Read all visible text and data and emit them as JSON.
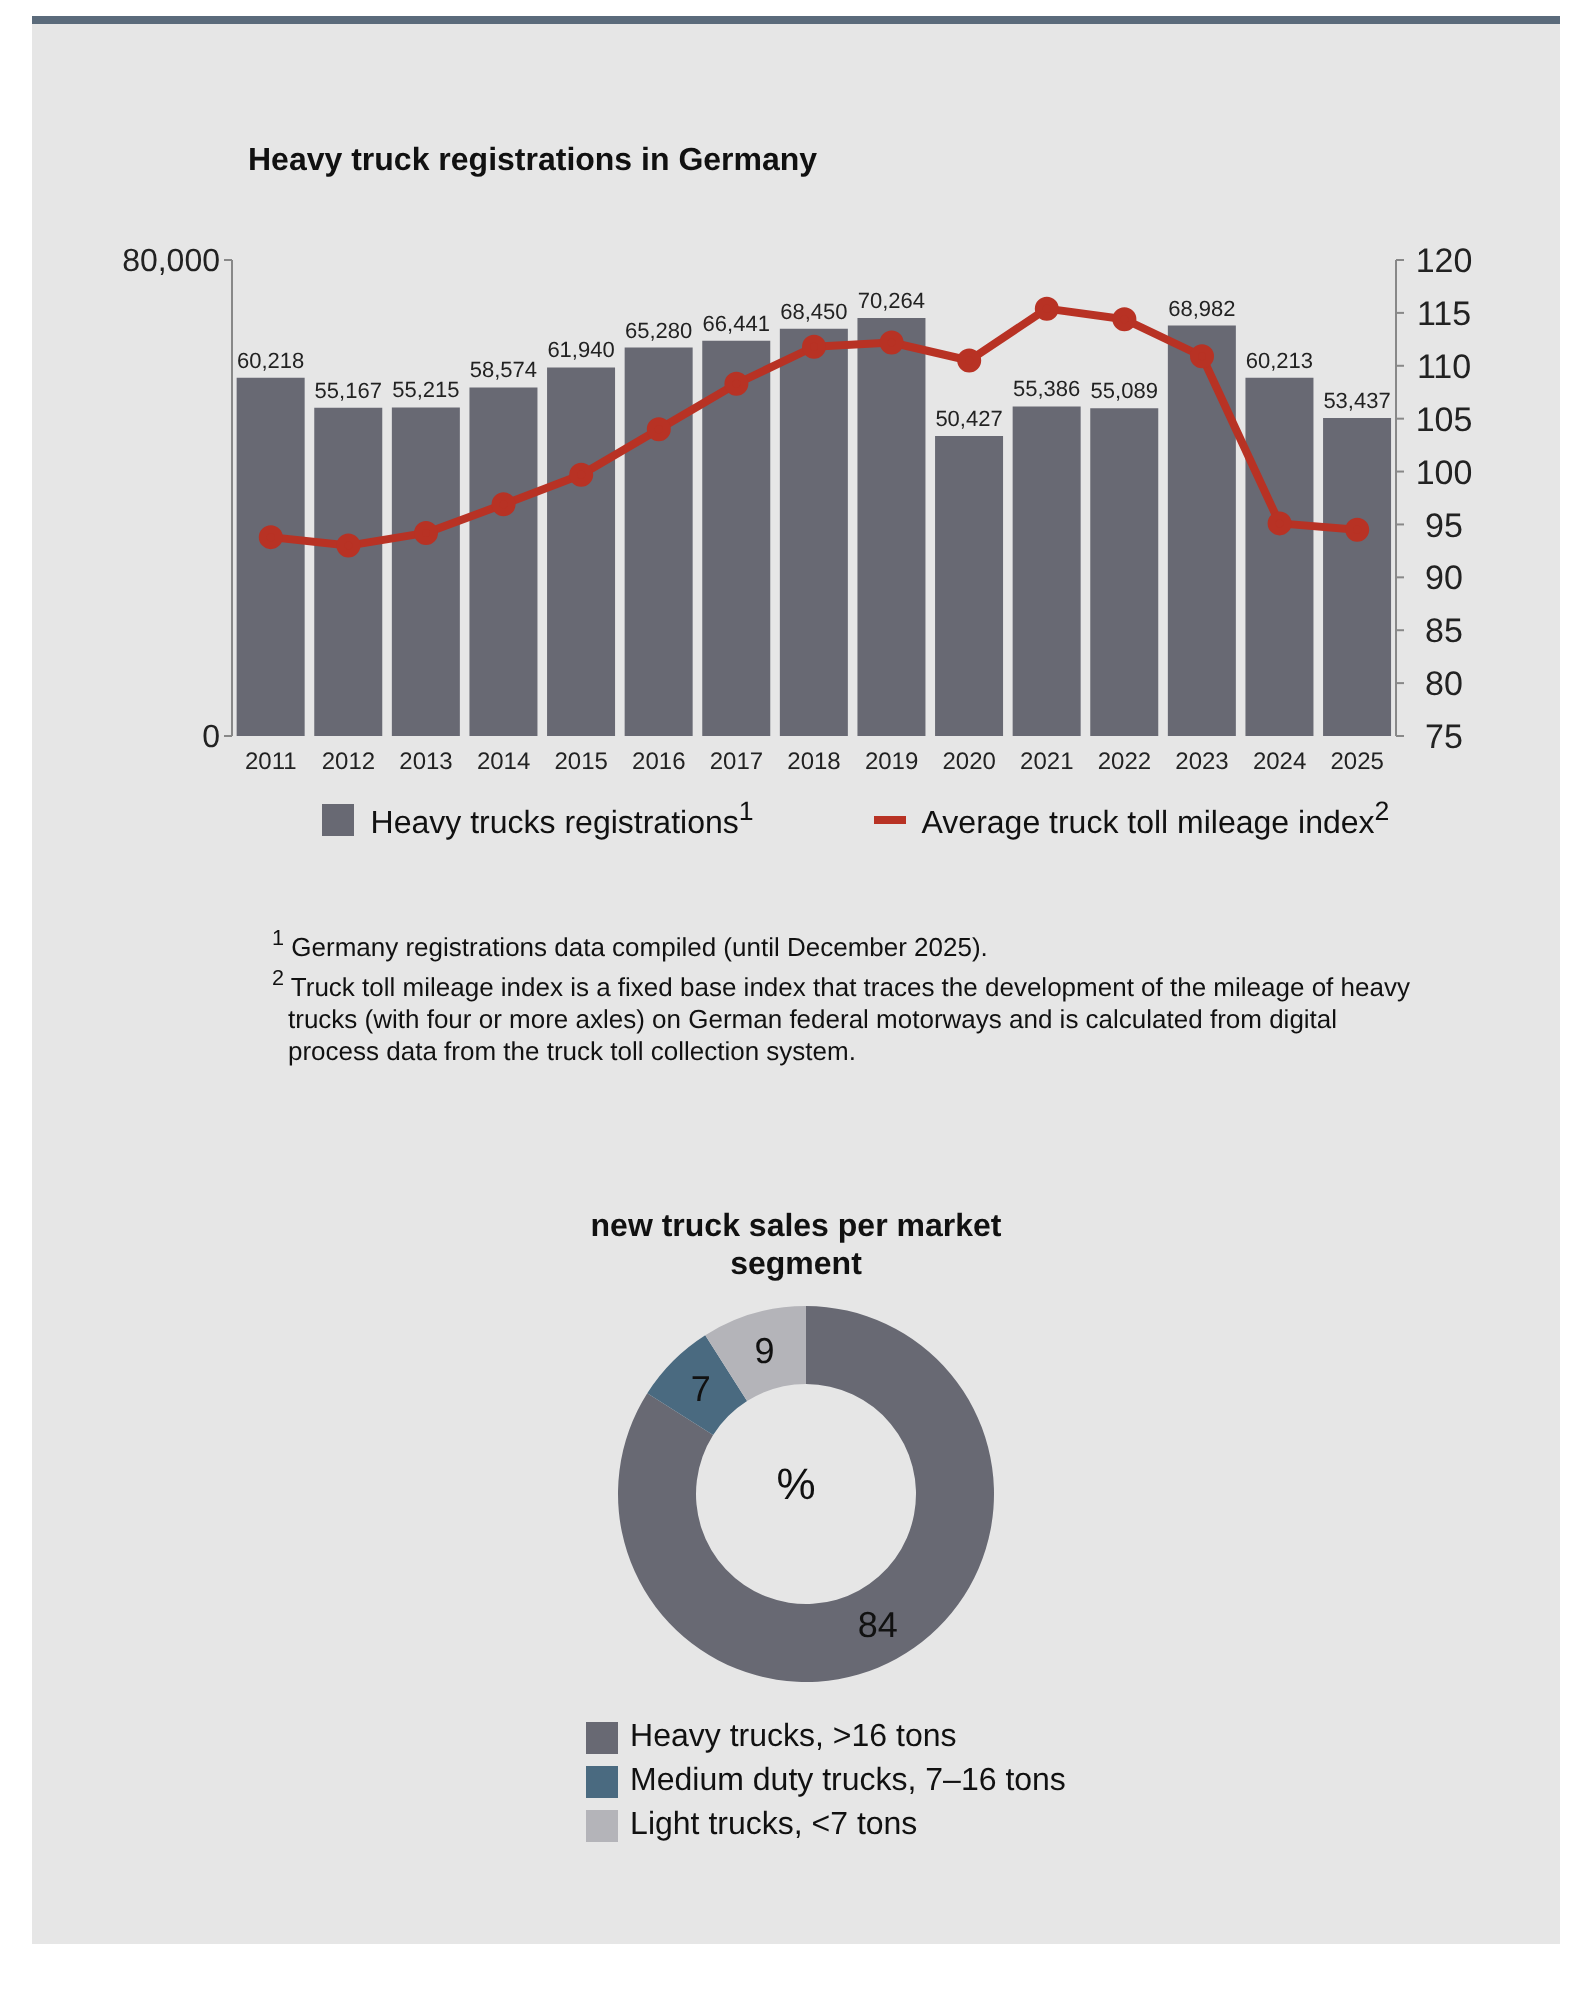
{
  "chart_data": [
    {
      "type": "bar",
      "title": "Heavy truck registrations in Germany",
      "categories": [
        "2011",
        "2012",
        "2013",
        "2014",
        "2015",
        "2016",
        "2017",
        "2018",
        "2019",
        "2020",
        "2021",
        "2022",
        "2023",
        "2024",
        "2025"
      ],
      "series": [
        {
          "name": "Heavy trucks registrations$^{1}$",
          "type": "bar",
          "color": "#686973",
          "values": [
            60218,
            55167,
            55215,
            58574,
            61940,
            65280,
            66441,
            68450,
            70264,
            50427,
            55386,
            55089,
            68982,
            60213,
            53437
          ],
          "value_labels": [
            "60,218",
            "55,167",
            "55,215",
            "58,574",
            "61,940",
            "65,280",
            "66,441",
            "68,450",
            "70,264",
            "50,427",
            "55,386",
            "55,089",
            "68,982",
            "60,213",
            "53,437"
          ]
        },
        {
          "name": "Average truck toll mileage index$^{2}$",
          "type": "line",
          "axis": "y2",
          "color": "#b83224",
          "marker": "circle",
          "line_style": "solid",
          "values": [
            93.8,
            93.0,
            94.2,
            96.9,
            99.7,
            104.0,
            108.3,
            111.8,
            112.2,
            110.5,
            115.4,
            114.4,
            110.9,
            95.1,
            94.5
          ]
        }
      ],
      "ylim": [
        0,
        80000
      ],
      "yticks": [
        0,
        {
          "value": 80000,
          "label": "80,000"
        }
      ],
      "y2lim": [
        75,
        120
      ],
      "y2ticks": [
        75,
        80,
        85,
        90,
        95,
        100,
        105,
        110,
        115,
        120
      ],
      "legend": "bottom",
      "annotations": [
        "$^{1}$ Germany registrations data compiled (until December 2025).",
        "$^{2}$ Truck toll mileage index is a fixed base index that traces the development of the mileage of heavy trucks (with four or more axles) on German federal motorways and is calculated from digital process data from the truck toll collection system."
      ]
    },
    {
      "type": "donut",
      "title": "new truck sales per market segment",
      "categories": [
        "Heavy trucks, >16 tons",
        "Medium duty trucks, 7–16 tons",
        "Light trucks, <7 tons"
      ],
      "values": [
        84,
        7,
        9
      ],
      "colors": [
        "#686973",
        "#4a6a80",
        "#b4b4b9"
      ],
      "data_labels": true,
      "legend": "bottom",
      "annotations": [
        "%"
      ]
    }
  ]
}
